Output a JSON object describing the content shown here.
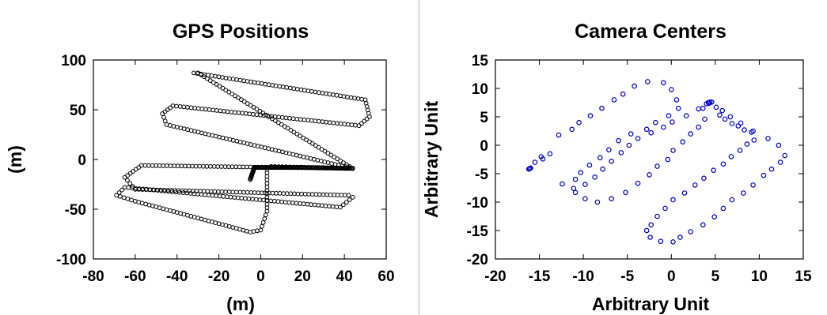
{
  "chart_data": [
    {
      "type": "scatter",
      "title": "GPS Positions",
      "xlabel": "(m)",
      "ylabel": "(m)",
      "xlim": [
        -80,
        60
      ],
      "ylim": [
        -100,
        100
      ],
      "xticks": [
        -80,
        -60,
        -40,
        -20,
        0,
        20,
        40,
        60
      ],
      "yticks": [
        -100,
        -50,
        0,
        50,
        100
      ],
      "xtick_labels": [
        "-80",
        "-60",
        "-40",
        "-20",
        "0",
        "20",
        "40",
        "60"
      ],
      "ytick_labels": [
        "-100",
        "-50",
        "0",
        "50",
        "100"
      ],
      "grid": false,
      "marker": "open-circle",
      "series": [
        {
          "color": "#000000",
          "path": [
            [
              -32,
              87
            ],
            [
              50,
              60
            ],
            [
              52,
              43
            ],
            [
              47,
              34
            ],
            [
              -42,
              54
            ],
            [
              -47,
              46
            ],
            [
              -45,
              35
            ],
            [
              44,
              -9
            ],
            [
              42,
              -9
            ],
            [
              -57,
              -6
            ],
            [
              -65,
              -18
            ],
            [
              -60,
              -30
            ],
            [
              42,
              -36
            ],
            [
              44,
              -38
            ],
            [
              38,
              -48
            ],
            [
              -65,
              -28
            ],
            [
              -69,
              -36
            ],
            [
              -60,
              -42
            ],
            [
              -5,
              -73
            ],
            [
              0,
              -71
            ],
            [
              3,
              -52
            ],
            [
              3,
              -10
            ],
            [
              5,
              -7
            ],
            [
              44,
              -9
            ],
            [
              -30,
              87
            ]
          ],
          "dense_segment": [
            [
              -5,
              -20
            ],
            [
              -3,
              -8
            ],
            [
              20,
              -8
            ],
            [
              44,
              -9
            ]
          ]
        }
      ]
    },
    {
      "type": "scatter",
      "title": "Camera Centers",
      "xlabel": "Arbitrary Unit",
      "ylabel": "Arbitrary Unit",
      "xlim": [
        -20,
        15
      ],
      "ylim": [
        -20,
        15
      ],
      "xticks": [
        -20,
        -15,
        -10,
        -5,
        0,
        5,
        10,
        15
      ],
      "yticks": [
        -20,
        -15,
        -10,
        -5,
        0,
        5,
        10,
        15
      ],
      "xtick_labels": [
        "-20",
        "-15",
        "-10",
        "-5",
        "0",
        "5",
        "10",
        "15"
      ],
      "ytick_labels": [
        "-20",
        "-15",
        "-10",
        "-5",
        "0",
        "5",
        "10",
        "15"
      ],
      "grid": false,
      "marker": "open-circle",
      "series": [
        {
          "color": "#0000cc",
          "points": [
            [
              -16.2,
              -4.2
            ],
            [
              -16.0,
              -4.0
            ],
            [
              -15.5,
              -3.0
            ],
            [
              -14.8,
              -2.0
            ],
            [
              -13.8,
              -1.5
            ],
            [
              -12.8,
              1.8
            ],
            [
              -11.3,
              2.8
            ],
            [
              -10.5,
              4.0
            ],
            [
              -9.2,
              5.2
            ],
            [
              -7.9,
              6.5
            ],
            [
              -6.5,
              8.0
            ],
            [
              -5.5,
              9.0
            ],
            [
              -4.2,
              10.4
            ],
            [
              -2.7,
              11.2
            ],
            [
              -0.9,
              11.0
            ],
            [
              0.0,
              9.8
            ],
            [
              0.6,
              8.0
            ],
            [
              0.8,
              6.5
            ],
            [
              -0.3,
              5.2
            ],
            [
              -1.8,
              4.0
            ],
            [
              -2.8,
              2.8
            ],
            [
              -4.6,
              2.0
            ],
            [
              -6.0,
              0.8
            ],
            [
              -7.1,
              -0.8
            ],
            [
              -8.1,
              -2.2
            ],
            [
              -9.3,
              -3.5
            ],
            [
              -10.3,
              -4.8
            ],
            [
              -10.9,
              -6.0
            ],
            [
              -10.9,
              -8.3
            ],
            [
              -9.8,
              -9.4
            ],
            [
              -8.4,
              -10.0
            ],
            [
              -6.8,
              -9.4
            ],
            [
              -5.2,
              -8.3
            ],
            [
              -3.8,
              -6.7
            ],
            [
              -2.5,
              -5.2
            ],
            [
              -1.6,
              -3.7
            ],
            [
              -0.4,
              -2.5
            ],
            [
              0.2,
              -0.9
            ],
            [
              1.3,
              0.6
            ],
            [
              2.2,
              2.0
            ],
            [
              3.1,
              3.2
            ],
            [
              3.8,
              4.6
            ],
            [
              3.6,
              6.5
            ],
            [
              4.0,
              7.3
            ],
            [
              4.2,
              7.5
            ],
            [
              4.4,
              7.6
            ],
            [
              4.6,
              7.6
            ],
            [
              5.1,
              6.7
            ],
            [
              5.5,
              5.3
            ],
            [
              6.1,
              4.6
            ],
            [
              6.9,
              3.8
            ],
            [
              7.6,
              3.4
            ],
            [
              8.3,
              2.7
            ],
            [
              9.1,
              2.3
            ],
            [
              9.4,
              0.9
            ],
            [
              8.6,
              0.2
            ],
            [
              7.8,
              -0.9
            ],
            [
              6.8,
              -2.0
            ],
            [
              5.9,
              -3.3
            ],
            [
              4.8,
              -4.4
            ],
            [
              3.7,
              -5.8
            ],
            [
              2.7,
              -7.0
            ],
            [
              1.5,
              -8.4
            ],
            [
              0.2,
              -9.6
            ],
            [
              -0.7,
              -11.1
            ],
            [
              -1.6,
              -12.5
            ],
            [
              -2.3,
              -14.0
            ],
            [
              -2.8,
              -15.0
            ],
            [
              -2.4,
              -16.2
            ],
            [
              -1.2,
              -16.9
            ],
            [
              0.2,
              -17.0
            ],
            [
              1.0,
              -16.2
            ],
            [
              2.2,
              -15.2
            ],
            [
              3.6,
              -14.0
            ],
            [
              4.9,
              -12.6
            ],
            [
              5.9,
              -11.1
            ],
            [
              6.9,
              -9.6
            ],
            [
              8.2,
              -8.4
            ],
            [
              9.3,
              -7.0
            ],
            [
              10.5,
              -5.3
            ],
            [
              11.4,
              -4.2
            ],
            [
              12.4,
              -3.0
            ],
            [
              12.9,
              -1.8
            ],
            [
              12.2,
              0.0
            ],
            [
              11.0,
              1.2
            ],
            [
              9.3,
              2.5
            ],
            [
              7.9,
              3.9
            ],
            [
              6.7,
              5.0
            ],
            [
              5.8,
              6.1
            ],
            [
              4.3,
              7.4
            ],
            [
              3.1,
              6.4
            ],
            [
              1.7,
              5.2
            ],
            [
              0.1,
              4.1
            ],
            [
              -0.9,
              3.2
            ],
            [
              -2.3,
              2.2
            ],
            [
              -3.8,
              1.2
            ],
            [
              -4.8,
              0.0
            ],
            [
              -5.7,
              -1.3
            ],
            [
              -6.8,
              -2.8
            ],
            [
              -7.8,
              -4.2
            ],
            [
              -8.7,
              -5.6
            ],
            [
              -9.8,
              -6.9
            ],
            [
              -11.1,
              -7.6
            ],
            [
              -12.4,
              -6.8
            ],
            [
              -14.6,
              -2.4
            ],
            [
              -16.1,
              -4.1
            ]
          ]
        }
      ]
    }
  ]
}
